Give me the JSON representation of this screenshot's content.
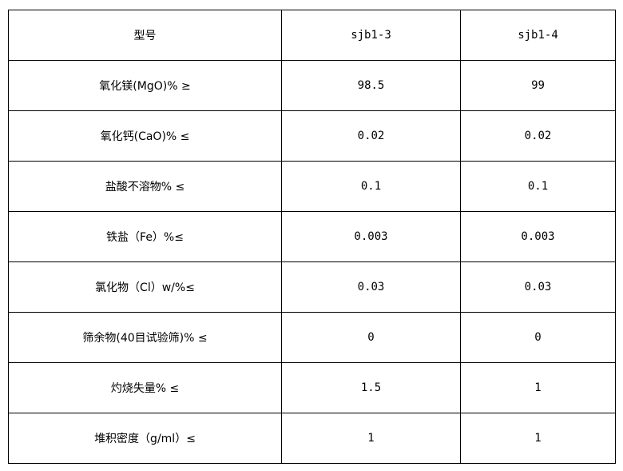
{
  "table": {
    "header": [
      "型号",
      "sjb1-3",
      "sjb1-4"
    ],
    "rows": [
      [
        "氧化镁(MgO)% ≥",
        "98.5",
        "99"
      ],
      [
        "氧化钙(CaO)% ≤",
        "0.02",
        "0.02"
      ],
      [
        "盐酸不溶物% ≤",
        "0.1",
        "0.1"
      ],
      [
        "铁盐（Fe）%≤",
        "0.003",
        "0.003"
      ],
      [
        "氯化物（Cl）w/%≤",
        "0.03",
        "0.03"
      ],
      [
        "筛余物(40目试验筛)% ≤",
        "0",
        "0"
      ],
      [
        "灼烧失量% ≤",
        "1.5",
        "1"
      ],
      [
        "堆积密度（g/ml）≤",
        "1",
        "1"
      ]
    ]
  }
}
